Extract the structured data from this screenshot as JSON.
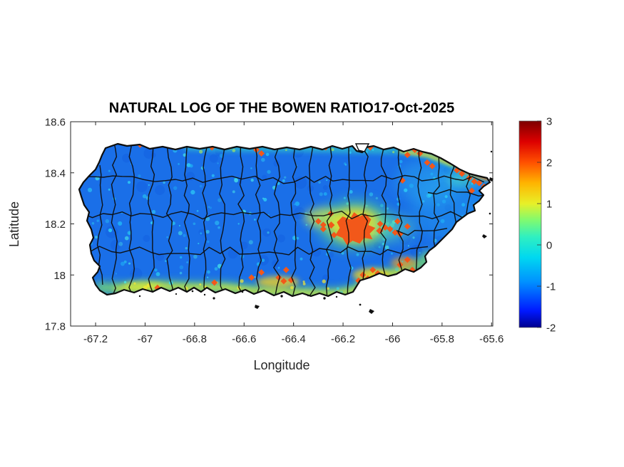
{
  "chart_data": {
    "type": "heatmap",
    "title": "NATURAL LOG OF THE BOWEN RATIO17-Oct-2025",
    "date_shown": "17-Oct-2025",
    "xlabel": "Longitude",
    "ylabel": "Latitude",
    "xlim": [
      -67.301,
      -65.595
    ],
    "ylim": [
      17.8,
      18.6
    ],
    "xticks": [
      -67.2,
      -67,
      -66.8,
      -66.6,
      -66.4,
      -66.2,
      -66,
      -65.8,
      -65.6
    ],
    "yticks": [
      18.6,
      18.4,
      18.2,
      18,
      17.8
    ],
    "grid": false,
    "legend": "none",
    "region": "Puerto Rico with municipality boundaries over a jet-colormap raster",
    "colorbar": {
      "min": -2,
      "max": 3,
      "ticks": [
        3,
        2,
        1,
        0,
        -1,
        -2
      ],
      "colormap": "jet",
      "position": "right"
    },
    "background_field": {
      "typical_value": -1,
      "value_range": [
        -1.8,
        0
      ],
      "description": "island interior mostly blue (ln(Bowen) ~ -1.5 to -0.5) with cyan speckles"
    },
    "bands": [
      {
        "location": "south-coast",
        "value_range": [
          0,
          1.5
        ]
      },
      {
        "location": "north-coast",
        "value_range": [
          -0.5,
          1
        ]
      }
    ],
    "hotspots": [
      {
        "lon": -66.15,
        "lat": 18.19,
        "value": 2.4,
        "size": "large"
      },
      {
        "lon": -67.02,
        "lat": 18.51,
        "value": 2.2,
        "n": 1
      },
      {
        "lon": -66.73,
        "lat": 18.5,
        "value": 2.2,
        "n": 1
      },
      {
        "lon": -66.69,
        "lat": 18.51,
        "value": 2.2,
        "n": 1
      },
      {
        "lon": -66.55,
        "lat": 18.49,
        "value": 2.2,
        "n": 2
      },
      {
        "lon": -66.27,
        "lat": 18.5,
        "value": 2.2,
        "n": 1
      },
      {
        "lon": -66.09,
        "lat": 18.5,
        "value": 2.2,
        "n": 1
      },
      {
        "lon": -65.94,
        "lat": 18.47,
        "value": 2.2,
        "n": 1
      },
      {
        "lon": -65.91,
        "lat": 18.49,
        "value": 2.2,
        "n": 2
      },
      {
        "lon": -65.86,
        "lat": 18.44,
        "value": 2.2,
        "n": 2
      },
      {
        "lon": -65.78,
        "lat": 18.48,
        "value": 2.2,
        "n": 2
      },
      {
        "lon": -65.74,
        "lat": 18.41,
        "value": 2.2,
        "n": 2
      },
      {
        "lon": -65.69,
        "lat": 18.38,
        "value": 2.2,
        "n": 2
      },
      {
        "lon": -65.65,
        "lat": 18.36,
        "value": 2.2,
        "n": 2
      },
      {
        "lon": -65.68,
        "lat": 18.33,
        "value": 2.2,
        "n": 1
      },
      {
        "lon": -65.96,
        "lat": 18.37,
        "value": 2.2,
        "n": 1
      },
      {
        "lon": -66.3,
        "lat": 18.21,
        "value": 2.2,
        "n": 2
      },
      {
        "lon": -66.28,
        "lat": 18.18,
        "value": 2.2,
        "n": 1
      },
      {
        "lon": -66.25,
        "lat": 18.24,
        "value": 2.2,
        "n": 1
      },
      {
        "lon": -66.05,
        "lat": 18.2,
        "value": 2.2,
        "n": 2
      },
      {
        "lon": -66.01,
        "lat": 18.18,
        "value": 2.2,
        "n": 2
      },
      {
        "lon": -65.98,
        "lat": 18.21,
        "value": 2.2,
        "n": 1
      },
      {
        "lon": -65.97,
        "lat": 18.16,
        "value": 2.2,
        "n": 1
      },
      {
        "lon": -65.94,
        "lat": 18.19,
        "value": 2.2,
        "n": 1
      },
      {
        "lon": -66.57,
        "lat": 17.99,
        "value": 2.2,
        "n": 1
      },
      {
        "lon": -66.53,
        "lat": 18.01,
        "value": 2.2,
        "n": 1
      },
      {
        "lon": -66.46,
        "lat": 17.99,
        "value": 2.2,
        "n": 2
      },
      {
        "lon": -66.43,
        "lat": 18.02,
        "value": 2.2,
        "n": 1
      },
      {
        "lon": -66.41,
        "lat": 17.98,
        "value": 2.2,
        "n": 1
      },
      {
        "lon": -66.12,
        "lat": 18.0,
        "value": 2.2,
        "n": 3
      },
      {
        "lon": -66.08,
        "lat": 18.02,
        "value": 2.2,
        "n": 2
      },
      {
        "lon": -66.05,
        "lat": 17.99,
        "value": 2.2,
        "n": 2
      },
      {
        "lon": -65.97,
        "lat": 18.04,
        "value": 2.2,
        "n": 1
      },
      {
        "lon": -65.94,
        "lat": 18.06,
        "value": 2.2,
        "n": 1
      },
      {
        "lon": -65.92,
        "lat": 18.02,
        "value": 2.2,
        "n": 1
      },
      {
        "lon": -66.72,
        "lat": 17.97,
        "value": 2.2,
        "n": 1
      },
      {
        "lon": -66.95,
        "lat": 17.95,
        "value": 2.2,
        "n": 1
      }
    ]
  },
  "colors": {
    "jet_min": "#00008f",
    "jet_mid": "#20e8d0",
    "jet_max": "#7d0000",
    "hotspot_orange": "#f2581a",
    "base_blue": "#1a6fe8",
    "speckle_cyan": "#30d8f8",
    "boundary_black": "#0d0d0d",
    "text": "#262626"
  }
}
